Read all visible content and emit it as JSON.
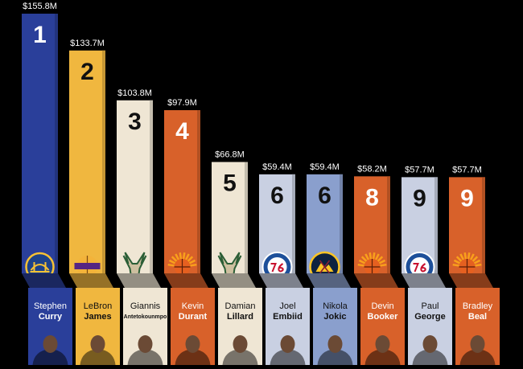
{
  "chart_data": {
    "type": "bar",
    "value_unit": "M",
    "ylim": [
      0,
      155.8
    ],
    "bars": [
      {
        "rank": "1",
        "value": 155.8,
        "value_label": "$155.8M",
        "first": "Stephen",
        "last": "Curry",
        "team_icon": "golden-state-warriors-logo",
        "color": "#2a3f9a"
      },
      {
        "rank": "2",
        "value": 133.7,
        "value_label": "$133.7M",
        "first": "LeBron",
        "last": "James",
        "team_icon": "los-angeles-lakers-logo",
        "color": "#f0b73f"
      },
      {
        "rank": "3",
        "value": 103.8,
        "value_label": "$103.8M",
        "first": "Giannis",
        "last": "Antetokounmpo",
        "team_icon": "milwaukee-bucks-logo",
        "color": "#efe6d4"
      },
      {
        "rank": "4",
        "value": 97.9,
        "value_label": "$97.9M",
        "first": "Kevin",
        "last": "Durant",
        "team_icon": "phoenix-suns-logo",
        "color": "#d8612a"
      },
      {
        "rank": "5",
        "value": 66.8,
        "value_label": "$66.8M",
        "first": "Damian",
        "last": "Lillard",
        "team_icon": "milwaukee-bucks-logo",
        "color": "#efe6d4"
      },
      {
        "rank": "6",
        "value": 59.4,
        "value_label": "$59.4M",
        "first": "Joel",
        "last": "Embiid",
        "team_icon": "philadelphia-76ers-logo",
        "color": "#c9d0e2"
      },
      {
        "rank": "6",
        "value": 59.4,
        "value_label": "$59.4M",
        "first": "Nikola",
        "last": "Jokic",
        "team_icon": "denver-nuggets-logo",
        "color": "#8a9fcd"
      },
      {
        "rank": "8",
        "value": 58.2,
        "value_label": "$58.2M",
        "first": "Devin",
        "last": "Booker",
        "team_icon": "phoenix-suns-logo",
        "color": "#d8612a"
      },
      {
        "rank": "9",
        "value": 57.7,
        "value_label": "$57.7M",
        "first": "Paul",
        "last": "George",
        "team_icon": "philadelphia-76ers-logo",
        "color": "#c9d0e2"
      },
      {
        "rank": "9",
        "value": 57.7,
        "value_label": "$57.7M",
        "first": "Bradley",
        "last": "Beal",
        "team_icon": "phoenix-suns-logo",
        "color": "#d8612a"
      }
    ]
  }
}
